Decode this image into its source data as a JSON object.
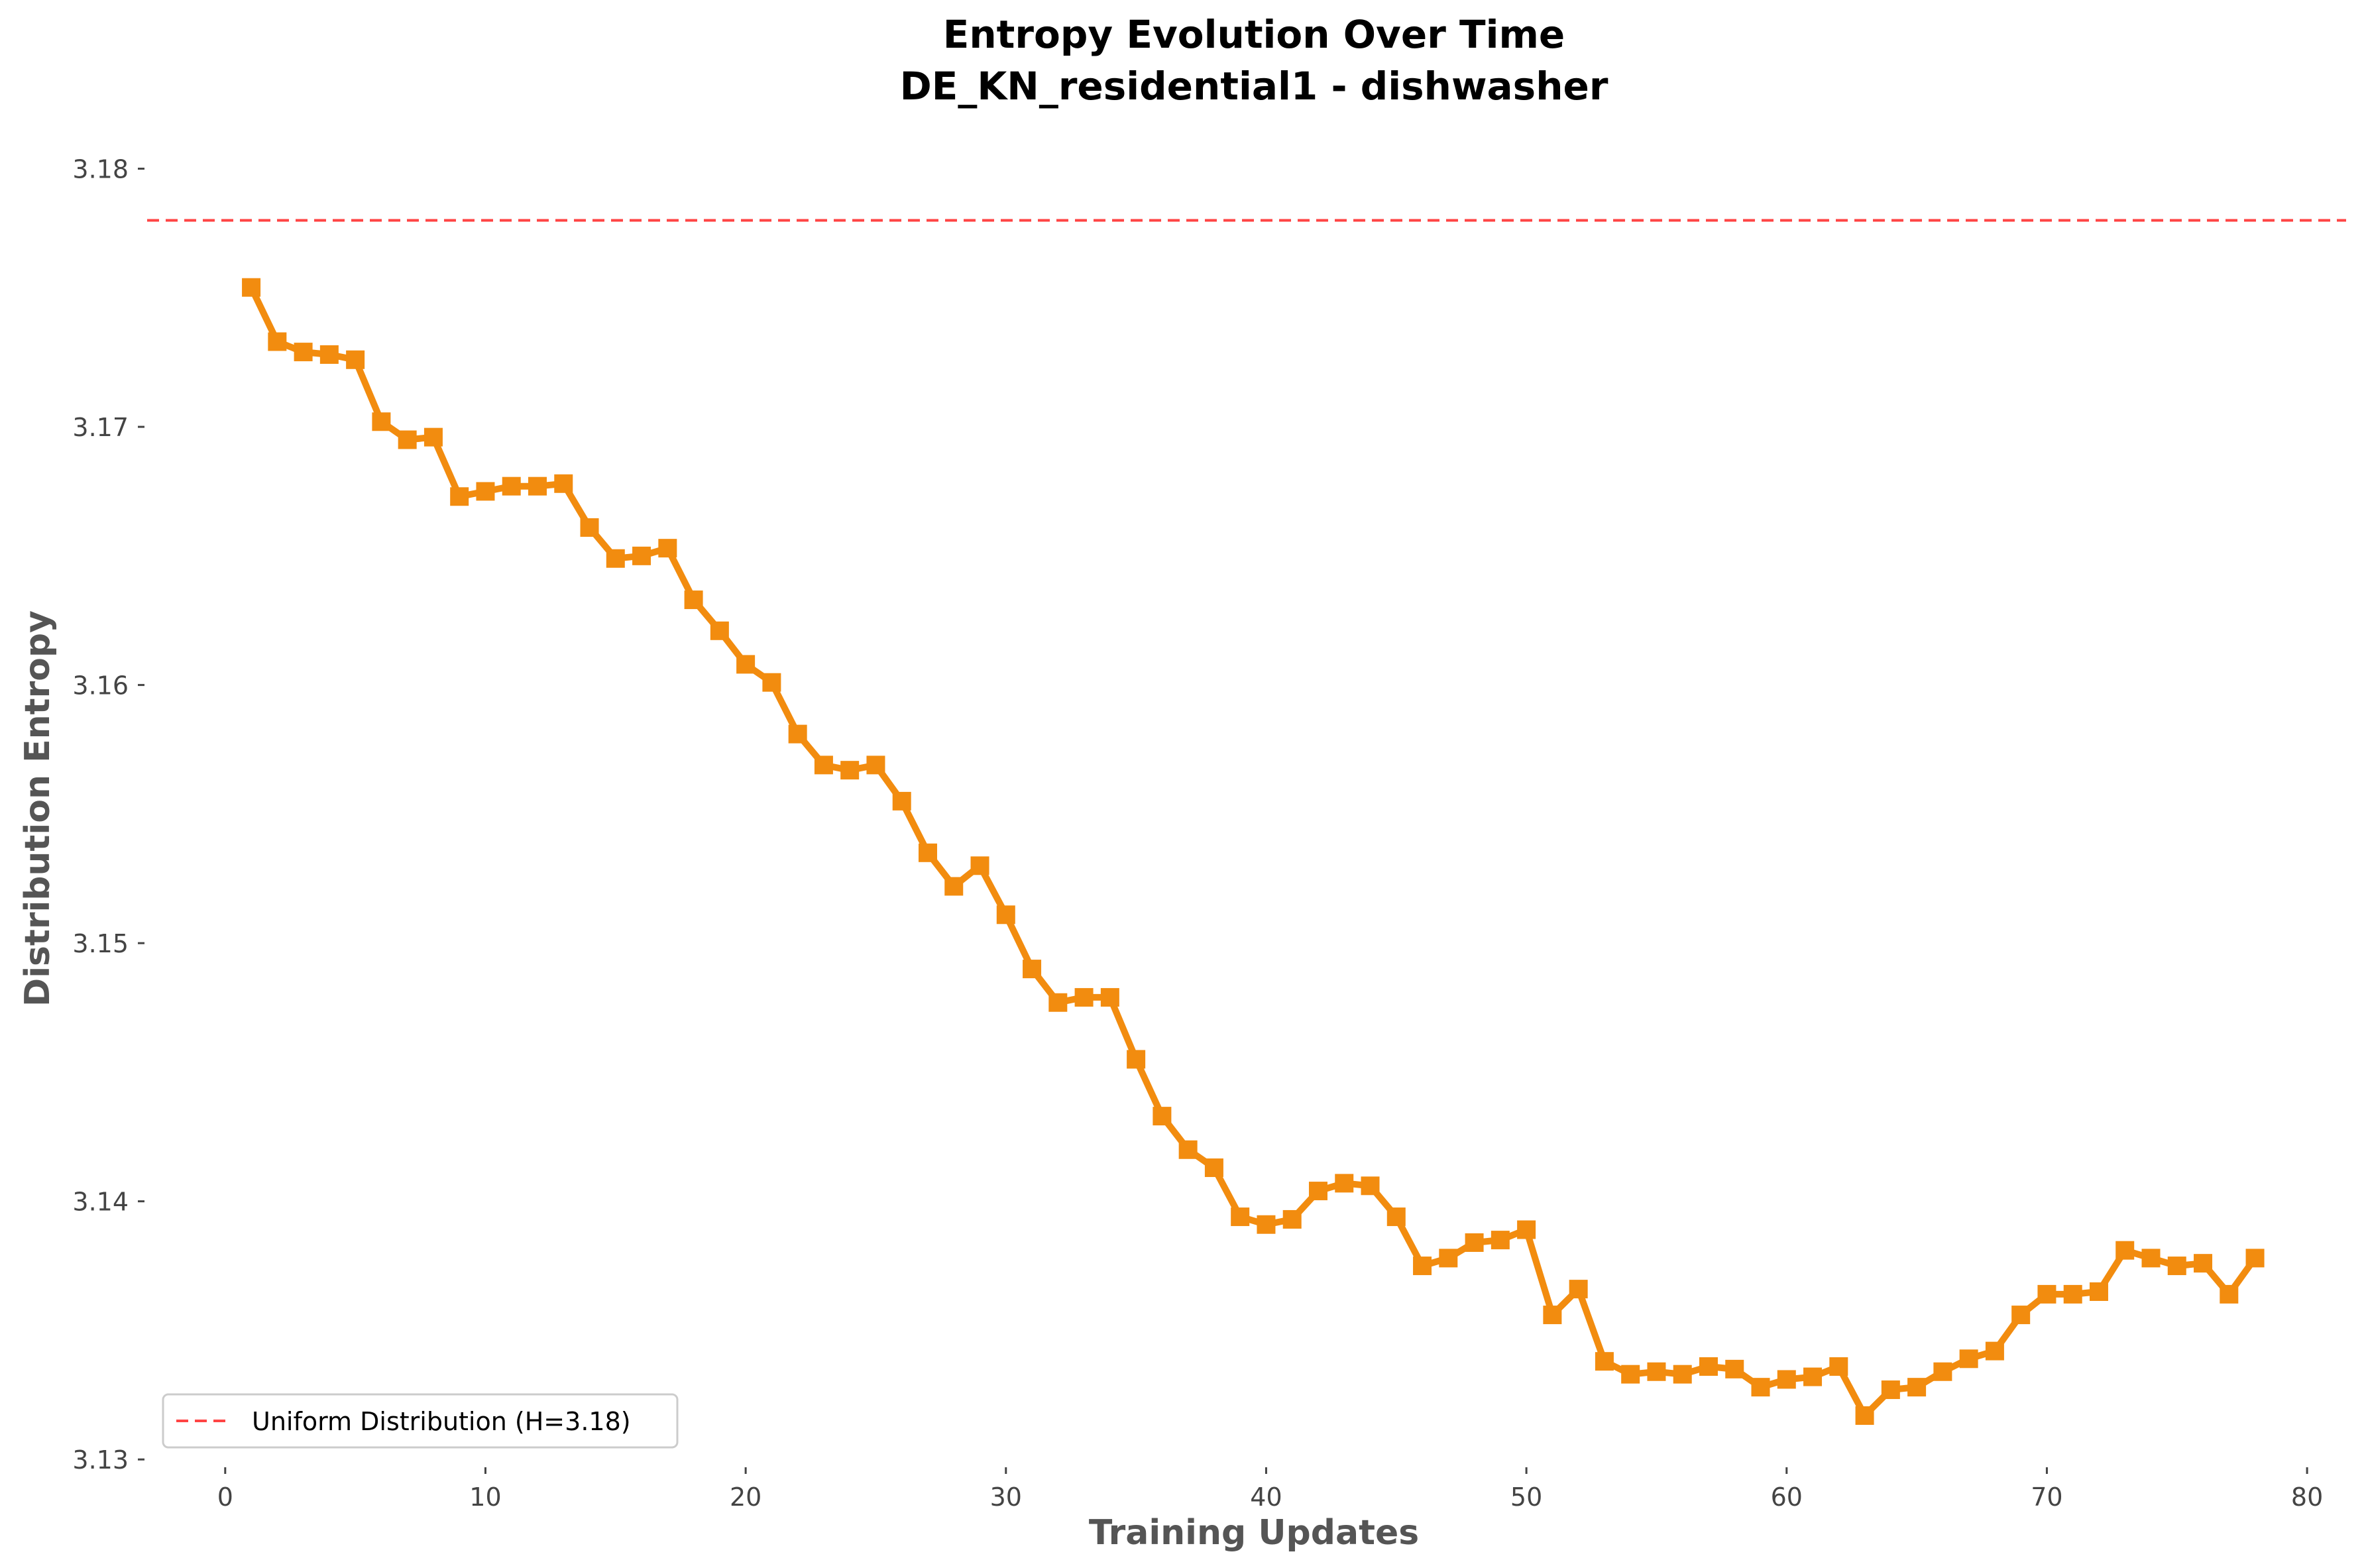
{
  "chart_data": {
    "type": "line",
    "title": "Entropy Evolution Over Time",
    "subtitle": "DE_KN_residential1 - dishwasher",
    "xlabel": "Training Updates",
    "ylabel": "Distribution Entropy",
    "xlim": [
      -3,
      81.5
    ],
    "ylim": [
      3.1298,
      3.1814
    ],
    "x_ticks": [
      0,
      10,
      20,
      30,
      40,
      50,
      60,
      70,
      80
    ],
    "y_ticks": [
      3.13,
      3.14,
      3.15,
      3.16,
      3.17,
      3.18
    ],
    "x_tick_labels": [
      "0",
      "10",
      "20",
      "30",
      "40",
      "50",
      "60",
      "70",
      "80"
    ],
    "y_tick_labels": [
      "3.13",
      "3.14",
      "3.15",
      "3.16",
      "3.17",
      "3.18"
    ],
    "grid": false,
    "legend_position": "lower-left",
    "series": [
      {
        "color": "#F28C0F",
        "marker": "square",
        "x": [
          1,
          2,
          3,
          4,
          5,
          6,
          7,
          8,
          9,
          10,
          11,
          12,
          13,
          14,
          15,
          16,
          17,
          18,
          19,
          20,
          21,
          22,
          23,
          24,
          25,
          26,
          27,
          28,
          29,
          30,
          31,
          32,
          33,
          34,
          35,
          36,
          37,
          38,
          39,
          40,
          41,
          42,
          43,
          44,
          45,
          46,
          47,
          48,
          49,
          50,
          51,
          52,
          53,
          54,
          55,
          56,
          57,
          58,
          59,
          60,
          61,
          62,
          63,
          64,
          65,
          66,
          67,
          68,
          69,
          70,
          71,
          72,
          73,
          74,
          75,
          76,
          77,
          78
        ],
        "y": [
          3.1754,
          3.1733,
          3.1729,
          3.1728,
          3.1726,
          3.1702,
          3.1695,
          3.1696,
          3.1673,
          3.1675,
          3.1677,
          3.1677,
          3.1678,
          3.1661,
          3.1649,
          3.165,
          3.1653,
          3.1633,
          3.1621,
          3.1608,
          3.1601,
          3.1581,
          3.1569,
          3.1567,
          3.1569,
          3.1555,
          3.1535,
          3.1522,
          3.153,
          3.1511,
          3.149,
          3.1477,
          3.1479,
          3.1479,
          3.1455,
          3.1433,
          3.142,
          3.1413,
          3.1394,
          3.1391,
          3.1393,
          3.1404,
          3.1407,
          3.1406,
          3.1394,
          3.1375,
          3.1378,
          3.1384,
          3.1385,
          3.1389,
          3.1356,
          3.1366,
          3.1338,
          3.1333,
          3.1334,
          3.1333,
          3.1336,
          3.1335,
          3.1328,
          3.1331,
          3.1332,
          3.1336,
          3.1317,
          3.1327,
          3.1328,
          3.1334,
          3.1339,
          3.1342,
          3.1356,
          3.1364,
          3.1364,
          3.1365,
          3.1381,
          3.1378,
          3.1375,
          3.1376,
          3.1364,
          3.1378
        ]
      },
      {
        "name": "Uniform Distribution (H=3.18)",
        "type": "hline",
        "y": 3.178,
        "color": "#FF4444",
        "dashed": true
      }
    ]
  }
}
